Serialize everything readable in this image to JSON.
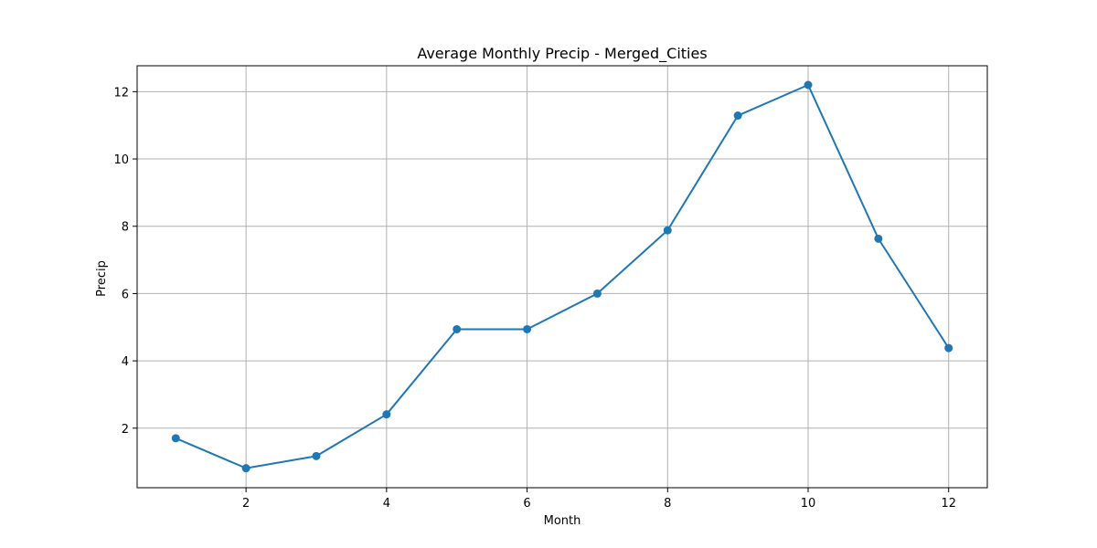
{
  "chart_data": {
    "type": "line",
    "title": "Average Monthly Precip - Merged_Cities",
    "xlabel": "Month",
    "ylabel": "Precip",
    "xlim": [
      0.45,
      12.55
    ],
    "ylim": [
      0.23,
      12.77
    ],
    "xticks": [
      2,
      4,
      6,
      8,
      10,
      12
    ],
    "yticks": [
      2,
      4,
      6,
      8,
      10,
      12
    ],
    "grid": true,
    "series": [
      {
        "color": "#1f77b4",
        "marker": "circle",
        "x": [
          1,
          2,
          3,
          4,
          5,
          6,
          7,
          8,
          9,
          10,
          11,
          12
        ],
        "y": [
          1.7,
          0.81,
          1.17,
          2.41,
          4.94,
          4.94,
          6.0,
          7.88,
          11.29,
          12.2,
          7.63,
          4.38
        ]
      }
    ]
  }
}
